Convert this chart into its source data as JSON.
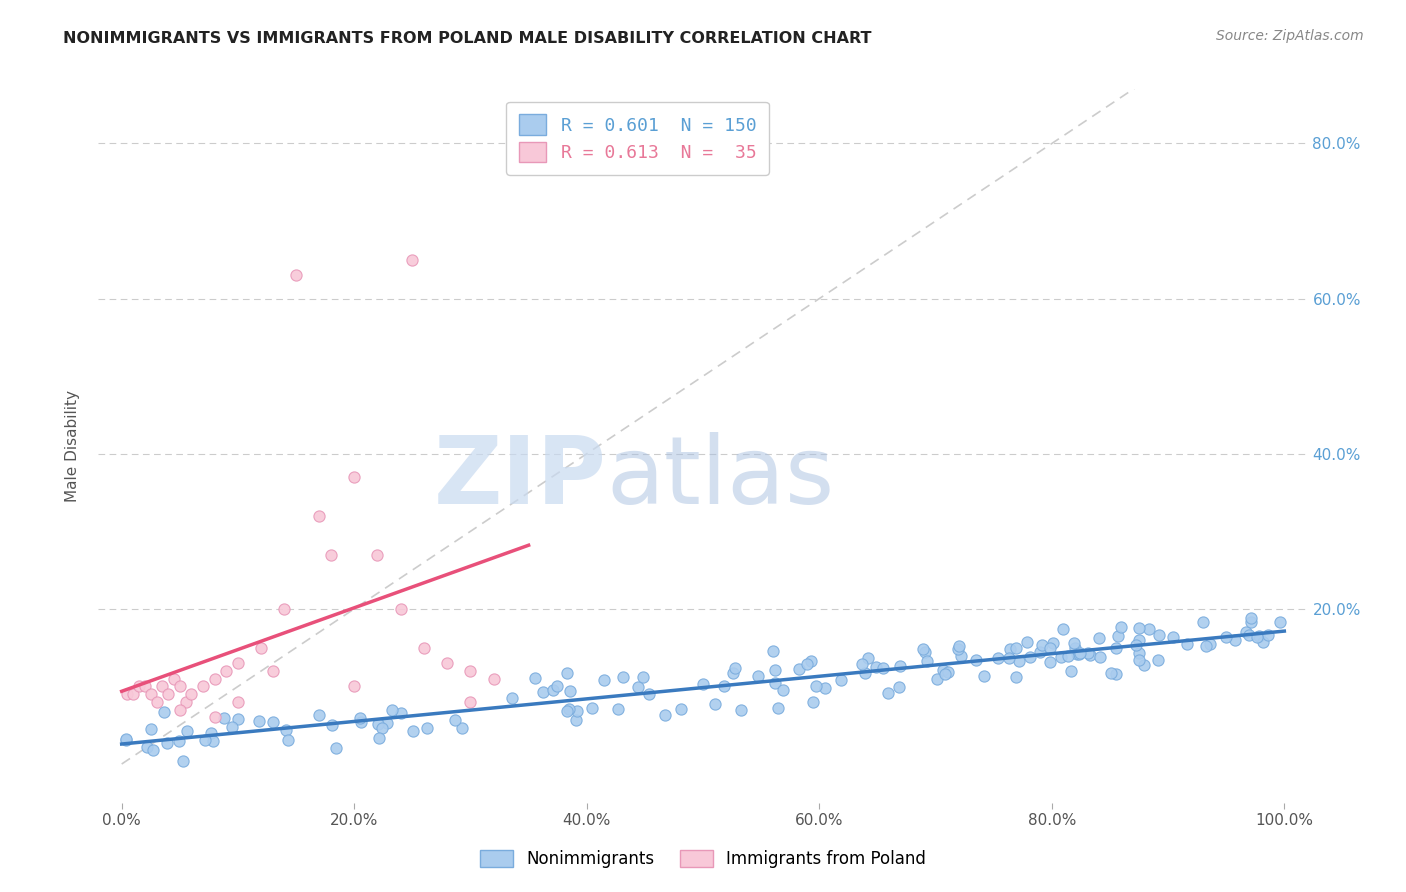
{
  "title": "NONIMMIGRANTS VS IMMIGRANTS FROM POLAND MALE DISABILITY CORRELATION CHART",
  "source": "Source: ZipAtlas.com",
  "ylabel": "Male Disability",
  "xlim": [
    -0.02,
    1.02
  ],
  "ylim": [
    -0.05,
    0.87
  ],
  "x_tick_labels": [
    "0.0%",
    "20.0%",
    "40.0%",
    "60.0%",
    "80.0%",
    "100.0%"
  ],
  "x_tick_values": [
    0,
    0.2,
    0.4,
    0.6,
    0.8,
    1.0
  ],
  "y_tick_labels": [
    "20.0%",
    "40.0%",
    "60.0%",
    "80.0%"
  ],
  "y_tick_values": [
    0.2,
    0.4,
    0.6,
    0.8
  ],
  "nonimmigrant_color": "#aaccee",
  "nonimmigrant_edge_color": "#7aacdd",
  "immigrant_color": "#f8c8d8",
  "immigrant_edge_color": "#e898b8",
  "nonimmigrant_line_color": "#3a7abf",
  "immigrant_line_color": "#e8507a",
  "diagonal_color": "#cccccc",
  "R_nonimmigrant": 0.601,
  "N_nonimmigrant": 150,
  "R_immigrant": 0.613,
  "N_immigrant": 35,
  "background_color": "#ffffff",
  "grid_color": "#cccccc",
  "legend_label_1": "Nonimmigrants",
  "legend_label_2": "Immigrants from Poland"
}
